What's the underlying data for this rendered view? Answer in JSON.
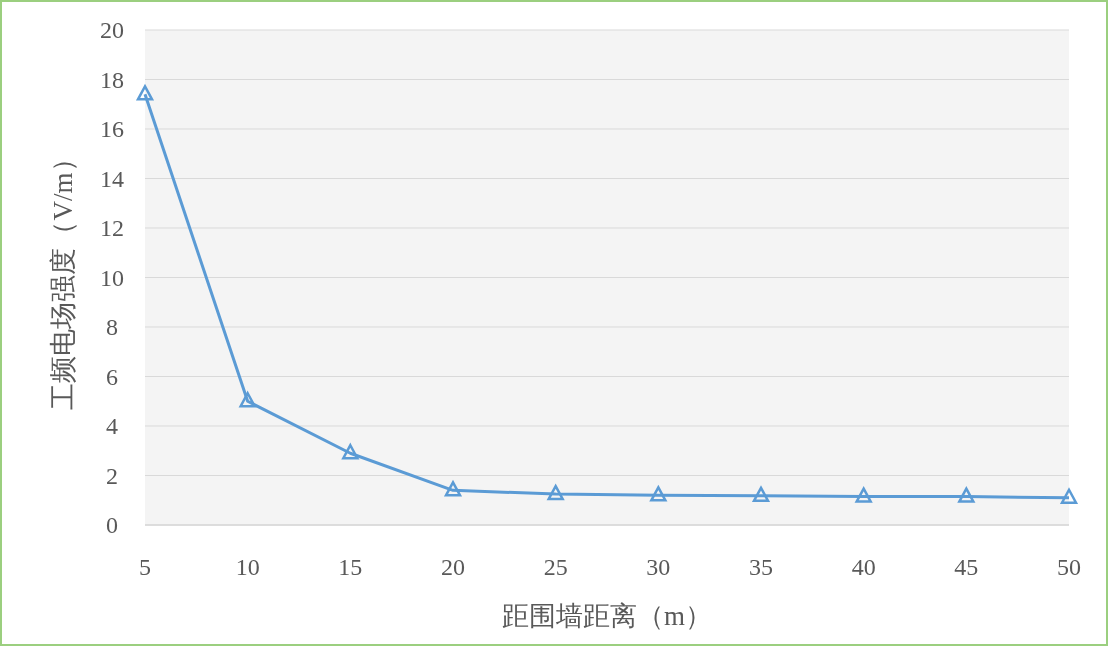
{
  "chart_data": {
    "type": "line",
    "xlabel": "距围墙距离（m）",
    "ylabel": "工频电场强度（V/m）",
    "x": [
      5,
      10,
      15,
      20,
      25,
      30,
      35,
      40,
      45,
      50
    ],
    "series": [
      {
        "color": "#5b9bd5",
        "values": [
          17.4,
          5.0,
          2.9,
          1.4,
          1.25,
          1.2,
          1.18,
          1.15,
          1.15,
          1.1
        ]
      }
    ],
    "xlim": [
      5,
      50
    ],
    "xticks": [
      5,
      10,
      15,
      20,
      25,
      30,
      35,
      40,
      45,
      50
    ],
    "ylim": [
      0,
      20
    ],
    "yticks": [
      0,
      2,
      4,
      6,
      8,
      10,
      12,
      14,
      16,
      18,
      20
    ],
    "grid": "y",
    "marker": "triangle",
    "line_style": "solid"
  }
}
